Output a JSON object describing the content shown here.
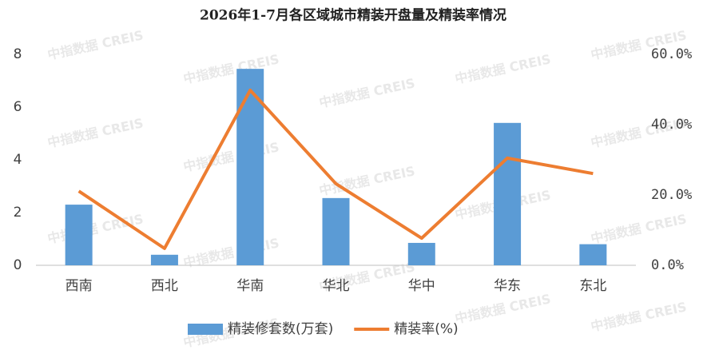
{
  "chart_data": {
    "type": "bar",
    "title": "2026年1-7月各区域城市精装开盘量及精装率情况",
    "watermark": "中指数据 CREIS",
    "categories": [
      "西南",
      "西北",
      "华南",
      "华北",
      "华中",
      "华东",
      "东北"
    ],
    "series": [
      {
        "name": "精装修套数(万套)",
        "type": "bar",
        "color": "#5b9bd5",
        "values": [
          2.3,
          0.4,
          7.45,
          2.55,
          0.85,
          5.4,
          0.8
        ]
      },
      {
        "name": "精装率(%)",
        "type": "line",
        "axis": "y2",
        "color": "#ed7d31",
        "values": [
          21.1,
          4.8,
          49.8,
          23.2,
          7.7,
          30.5,
          26.1
        ]
      }
    ],
    "ylim": [
      0,
      8
    ],
    "yticks": [
      0,
      2,
      4,
      6,
      8
    ],
    "y2lim": [
      0,
      60
    ],
    "y2ticks": [
      {
        "value": 0,
        "label": "0.0%"
      },
      {
        "value": 20,
        "label": "20.0%"
      },
      {
        "value": 40,
        "label": "40.0%"
      },
      {
        "value": 60,
        "label": "60.0%"
      }
    ],
    "legend": "bottom"
  }
}
